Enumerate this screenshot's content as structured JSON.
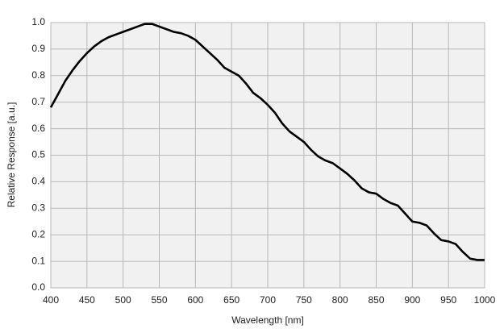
{
  "chart_data": {
    "type": "line",
    "x_label": "Wavelength   [nm]",
    "y_label": "Relative Response [a.u.]",
    "x": [
      400,
      410,
      420,
      430,
      440,
      450,
      460,
      470,
      480,
      490,
      500,
      510,
      520,
      530,
      540,
      550,
      560,
      570,
      580,
      590,
      600,
      610,
      620,
      630,
      640,
      650,
      660,
      670,
      680,
      690,
      700,
      710,
      720,
      730,
      740,
      750,
      760,
      770,
      780,
      790,
      800,
      810,
      820,
      830,
      840,
      850,
      860,
      870,
      880,
      890,
      900,
      910,
      920,
      930,
      940,
      950,
      960,
      970,
      980,
      990,
      1000
    ],
    "series": [
      {
        "color": "#000000",
        "values": [
          0.68,
          0.73,
          0.78,
          0.82,
          0.855,
          0.885,
          0.91,
          0.93,
          0.945,
          0.955,
          0.965,
          0.975,
          0.985,
          0.995,
          0.995,
          0.985,
          0.975,
          0.965,
          0.96,
          0.95,
          0.935,
          0.91,
          0.885,
          0.86,
          0.83,
          0.815,
          0.8,
          0.77,
          0.735,
          0.715,
          0.69,
          0.66,
          0.62,
          0.59,
          0.57,
          0.55,
          0.52,
          0.495,
          0.48,
          0.47,
          0.45,
          0.43,
          0.405,
          0.375,
          0.36,
          0.355,
          0.335,
          0.32,
          0.31,
          0.28,
          0.25,
          0.245,
          0.235,
          0.205,
          0.18,
          0.175,
          0.165,
          0.135,
          0.11,
          0.105,
          0.105
        ]
      }
    ],
    "xlim": [
      400,
      1000
    ],
    "xticks": [
      400,
      450,
      500,
      550,
      600,
      650,
      700,
      750,
      800,
      850,
      900,
      950,
      1000
    ],
    "ylim": [
      0,
      1
    ],
    "yticks": [
      {
        "value": 0,
        "label": "0.0"
      },
      0.1,
      0.2,
      0.3,
      0.4,
      0.5,
      0.6,
      0.7,
      0.8,
      0.9,
      {
        "value": 1,
        "label": "1.0"
      }
    ],
    "grid": true
  }
}
